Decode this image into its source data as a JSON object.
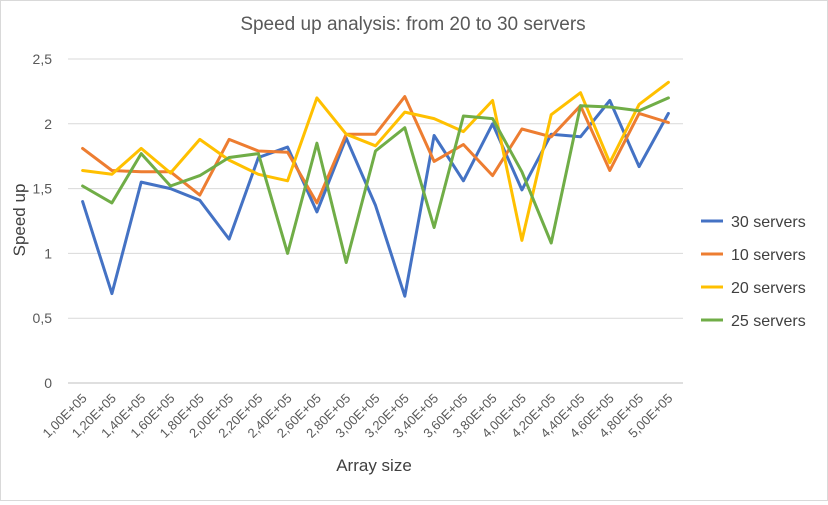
{
  "chart_data": {
    "type": "line",
    "title": "Speed up analysis: from 20 to 30 servers",
    "xlabel": "Array size",
    "ylabel": "Speed up",
    "ylim": [
      0,
      2.5
    ],
    "yticks": [
      "0",
      "0,5",
      "1",
      "1,5",
      "2",
      "2,5"
    ],
    "grid": "horizontal",
    "legend_position": "right",
    "categories": [
      "1,00E+05",
      "1,20E+05",
      "1,40E+05",
      "1,60E+05",
      "1,80E+05",
      "2,00E+05",
      "2,20E+05",
      "2,40E+05",
      "2,60E+05",
      "2,80E+05",
      "3,00E+05",
      "3,20E+05",
      "3,40E+05",
      "3,60E+05",
      "3,80E+05",
      "4,00E+05",
      "4,20E+05",
      "4,40E+05",
      "4,60E+05",
      "4,80E+05",
      "5,00E+05"
    ],
    "series": [
      {
        "name": "30 servers",
        "color": "#4472c4",
        "values": [
          1.4,
          0.69,
          1.55,
          1.5,
          1.41,
          1.11,
          1.74,
          1.82,
          1.32,
          1.89,
          1.37,
          0.67,
          1.91,
          1.56,
          2.0,
          1.49,
          1.92,
          1.9,
          2.18,
          1.67,
          2.08
        ]
      },
      {
        "name": "10 servers",
        "color": "#ed7d31",
        "values": [
          1.81,
          1.64,
          1.63,
          1.63,
          1.45,
          1.88,
          1.79,
          1.78,
          1.39,
          1.92,
          1.92,
          2.21,
          1.71,
          1.84,
          1.6,
          1.96,
          1.9,
          2.14,
          1.64,
          2.08,
          2.01
        ]
      },
      {
        "name": "20 servers",
        "color": "#ffc000",
        "values": [
          1.64,
          1.61,
          1.81,
          1.62,
          1.88,
          1.72,
          1.61,
          1.56,
          2.2,
          1.92,
          1.83,
          2.09,
          2.04,
          1.94,
          2.18,
          1.1,
          2.07,
          2.24,
          1.7,
          2.15,
          2.32
        ]
      },
      {
        "name": "25 servers",
        "color": "#70ad47",
        "values": [
          1.52,
          1.39,
          1.77,
          1.52,
          1.6,
          1.74,
          1.77,
          1.0,
          1.85,
          0.93,
          1.79,
          1.97,
          1.2,
          2.06,
          2.04,
          1.63,
          1.08,
          2.14,
          2.13,
          2.1,
          2.2
        ]
      }
    ]
  }
}
